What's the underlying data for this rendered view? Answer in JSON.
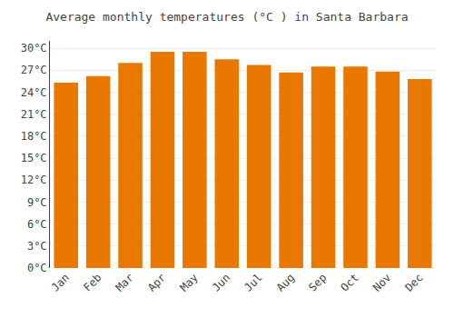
{
  "chart_data": {
    "type": "bar",
    "title": "Average monthly temperatures (°C ) in Santa Barbara",
    "categories": [
      "Jan",
      "Feb",
      "Mar",
      "Apr",
      "May",
      "Jun",
      "Jul",
      "Aug",
      "Sep",
      "Oct",
      "Nov",
      "Dec"
    ],
    "values": [
      25.3,
      26.2,
      28.0,
      29.5,
      29.5,
      28.5,
      27.7,
      26.7,
      27.5,
      27.5,
      26.8,
      25.8
    ],
    "color": "#E87800",
    "ylim": [
      0,
      31
    ],
    "yticks": [
      {
        "value": 0,
        "label": "0°C"
      },
      {
        "value": 3,
        "label": "3°C"
      },
      {
        "value": 6,
        "label": "6°C"
      },
      {
        "value": 9,
        "label": "9°C"
      },
      {
        "value": 12,
        "label": "12°C"
      },
      {
        "value": 15,
        "label": "15°C"
      },
      {
        "value": 18,
        "label": "18°C"
      },
      {
        "value": 21,
        "label": "21°C"
      },
      {
        "value": 24,
        "label": "24°C"
      },
      {
        "value": 27,
        "label": "27°C"
      },
      {
        "value": 30,
        "label": "30°C"
      }
    ],
    "grid": true
  }
}
